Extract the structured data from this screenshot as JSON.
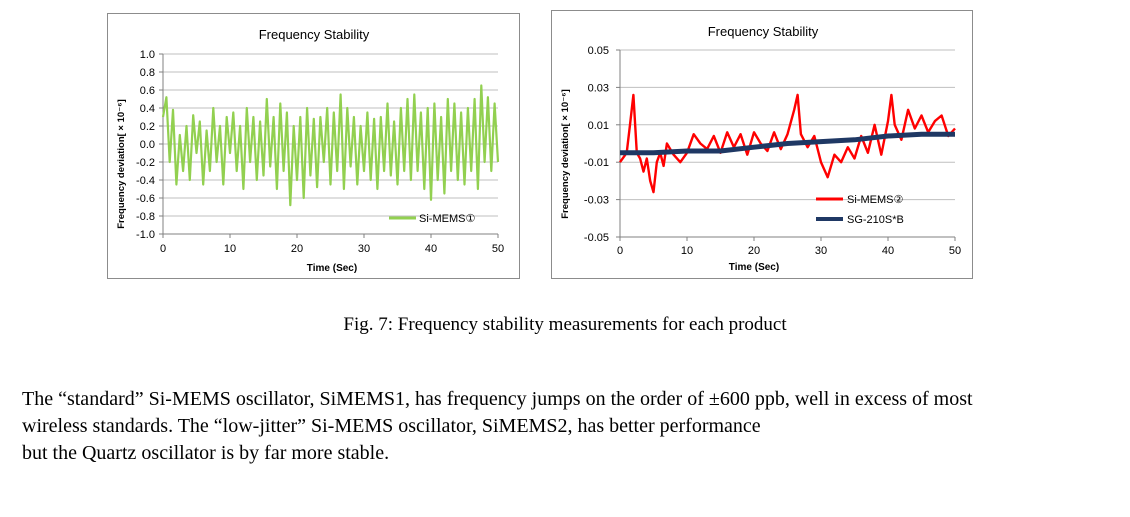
{
  "colors": {
    "mems1": "#92d050",
    "mems2": "#ff0000",
    "sg210": "#1f3864",
    "grid": "#bfbfbf",
    "axis": "#808080"
  },
  "chart_data": [
    {
      "type": "line",
      "title": "Frequency  Stability",
      "xlabel": "Time (Sec)",
      "ylabel": "Frequency deviation[ × 10⁻⁶]",
      "xlim": [
        0,
        50
      ],
      "ylim": [
        -1.0,
        1.0
      ],
      "xticks": [
        0,
        10,
        20,
        30,
        40,
        50
      ],
      "xtick_labels": [
        "0",
        "10",
        "20",
        "30",
        "40",
        "50"
      ],
      "yticks": [
        1.0,
        0.8,
        0.6,
        0.4,
        0.2,
        0.0,
        -0.2,
        -0.4,
        -0.6,
        -0.8,
        -1.0
      ],
      "ytick_labels": [
        "1.0",
        "0.8",
        "0.6",
        "0.4",
        "0.2",
        "0.0",
        "-0.2",
        "-0.4",
        "-0.6",
        "-0.8",
        "-1.0"
      ],
      "legend_position": "bottom-right",
      "series": [
        {
          "name": "Si-MEMS①",
          "color": "#92d050",
          "x": [
            0,
            0.5,
            1,
            1.5,
            2,
            2.5,
            3,
            3.5,
            4,
            4.5,
            5,
            5.5,
            6,
            6.5,
            7,
            7.5,
            8,
            8.5,
            9,
            9.5,
            10,
            10.5,
            11,
            11.5,
            12,
            12.5,
            13,
            13.5,
            14,
            14.5,
            15,
            15.5,
            16,
            16.5,
            17,
            17.5,
            18,
            18.5,
            19,
            19.5,
            20,
            20.5,
            21,
            21.5,
            22,
            22.5,
            23,
            23.5,
            24,
            24.5,
            25,
            25.5,
            26,
            26.5,
            27,
            27.5,
            28,
            28.5,
            29,
            29.5,
            30,
            30.5,
            31,
            31.5,
            32,
            32.5,
            33,
            33.5,
            34,
            34.5,
            35,
            35.5,
            36,
            36.5,
            37,
            37.5,
            38,
            38.5,
            39,
            39.5,
            40,
            40.5,
            41,
            41.5,
            42,
            42.5,
            43,
            43.5,
            44,
            44.5,
            45,
            45.5,
            46,
            46.5,
            47,
            47.5,
            48,
            48.5,
            49,
            49.5,
            50
          ],
          "values": [
            0.3,
            0.52,
            -0.2,
            0.38,
            -0.45,
            0.1,
            -0.3,
            0.2,
            -0.4,
            0.32,
            -0.1,
            0.25,
            -0.45,
            0.15,
            -0.3,
            0.4,
            -0.2,
            0.2,
            -0.45,
            0.3,
            -0.1,
            0.35,
            -0.3,
            0.2,
            -0.5,
            0.4,
            -0.2,
            0.3,
            -0.4,
            0.25,
            -0.35,
            0.5,
            -0.25,
            0.3,
            -0.5,
            0.45,
            -0.3,
            0.35,
            -0.68,
            0.2,
            -0.4,
            0.3,
            -0.6,
            0.4,
            -0.35,
            0.28,
            -0.48,
            0.3,
            -0.2,
            0.4,
            -0.45,
            0.35,
            -0.3,
            0.55,
            -0.5,
            0.4,
            -0.25,
            0.3,
            -0.45,
            0.2,
            -0.3,
            0.35,
            -0.4,
            0.28,
            -0.5,
            0.3,
            -0.3,
            0.45,
            -0.35,
            0.25,
            -0.45,
            0.4,
            -0.3,
            0.5,
            -0.4,
            0.55,
            -0.3,
            0.35,
            -0.5,
            0.4,
            -0.62,
            0.45,
            -0.4,
            0.3,
            -0.55,
            0.5,
            -0.3,
            0.45,
            -0.4,
            0.35,
            -0.45,
            0.4,
            -0.3,
            0.5,
            -0.5,
            0.65,
            -0.2,
            0.52,
            -0.3,
            0.45,
            -0.2
          ]
        }
      ]
    },
    {
      "type": "line",
      "title": "Frequency   Stability",
      "xlabel": "Time (Sec)",
      "ylabel": "Frequency deviation[ × 10⁻⁶]",
      "xlim": [
        0,
        50
      ],
      "ylim": [
        -0.05,
        0.05
      ],
      "xticks": [
        0,
        10,
        20,
        30,
        40,
        50
      ],
      "xtick_labels": [
        "0",
        "10",
        "20",
        "30",
        "40",
        "50"
      ],
      "yticks": [
        0.05,
        0.03,
        0.01,
        -0.01,
        -0.03,
        -0.05
      ],
      "ytick_labels": [
        "0.05",
        "0.03",
        "0.01",
        "-0.01",
        "-0.03",
        "-0.05"
      ],
      "legend_position": "bottom-right",
      "series": [
        {
          "name": "Si-MEMS②",
          "color": "#ff0000",
          "x": [
            0,
            1,
            1.5,
            2,
            2.5,
            3,
            3.5,
            4,
            4.5,
            5,
            5.5,
            6,
            6.5,
            7,
            8,
            9,
            10,
            11,
            12,
            13,
            14,
            15,
            16,
            17,
            18,
            19,
            20,
            21,
            22,
            23,
            24,
            25,
            26,
            26.5,
            27,
            28,
            29,
            30,
            31,
            32,
            33,
            34,
            35,
            36,
            37,
            38,
            39,
            40,
            40.5,
            41,
            42,
            43,
            44,
            45,
            46,
            47,
            48,
            49,
            50
          ],
          "values": [
            -0.01,
            -0.005,
            0.01,
            0.026,
            -0.005,
            -0.008,
            -0.015,
            -0.008,
            -0.02,
            -0.026,
            -0.01,
            -0.005,
            -0.012,
            0.0,
            -0.006,
            -0.01,
            -0.005,
            0.005,
            0.0,
            -0.003,
            0.004,
            -0.005,
            0.006,
            -0.002,
            0.005,
            -0.006,
            0.006,
            0.0,
            -0.004,
            0.006,
            -0.003,
            0.005,
            0.018,
            0.026,
            0.005,
            -0.002,
            0.004,
            -0.01,
            -0.018,
            -0.006,
            -0.01,
            -0.002,
            -0.008,
            0.004,
            -0.005,
            0.01,
            -0.006,
            0.012,
            0.026,
            0.01,
            0.002,
            0.018,
            0.008,
            0.015,
            0.006,
            0.012,
            0.015,
            0.004,
            0.008
          ]
        },
        {
          "name": "SG-210S*B",
          "color": "#1f3864",
          "x": [
            0,
            5,
            10,
            15,
            20,
            25,
            30,
            35,
            40,
            45,
            50
          ],
          "values": [
            -0.005,
            -0.005,
            -0.004,
            -0.004,
            -0.002,
            0.0,
            0.001,
            0.002,
            0.004,
            0.005,
            0.005
          ]
        }
      ]
    }
  ],
  "caption": "Fig. 7: Frequency stability measurements for each product",
  "paragraph": {
    "line1": "The “standard” Si-MEMS oscillator, SiMEMS1, has frequency jumps on the order of ±600 ppb, well in excess of most",
    "line2": "wireless standards.    The “low-jitter” Si-MEMS oscillator, SiMEMS2, has better performance",
    "line3": "but the Quartz oscillator is by far more stable."
  }
}
